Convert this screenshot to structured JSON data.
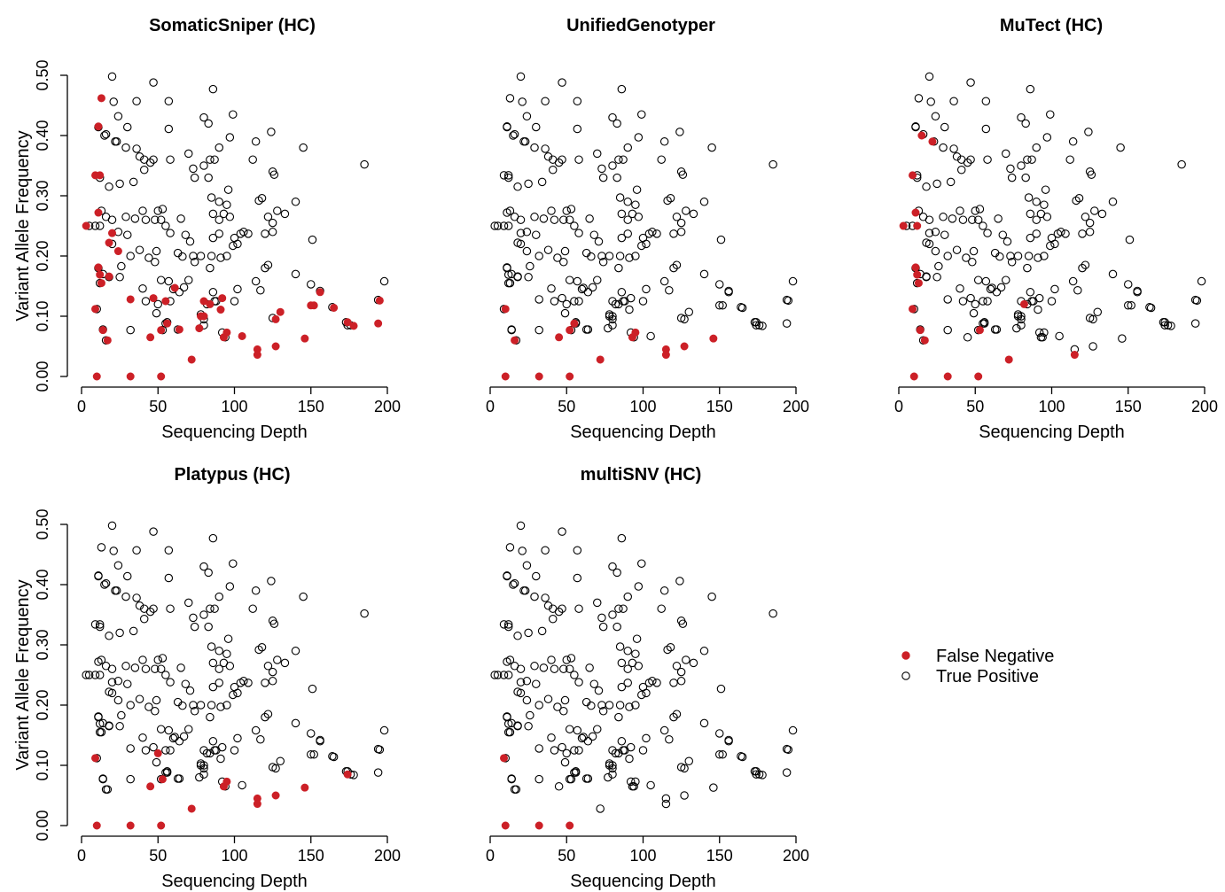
{
  "colors": {
    "false_negative": "#CC2027",
    "true_positive_stroke": "#000000",
    "axis": "#000000"
  },
  "legend": {
    "items": [
      {
        "label": "False Negative",
        "marker": "filled-circle",
        "color": "#CC2027"
      },
      {
        "label": "True Positive",
        "marker": "open-circle",
        "color": "#000000"
      }
    ]
  },
  "chart_data": [
    {
      "type": "scatter",
      "title": "SomaticSniper (HC)",
      "xlabel": "Sequencing Depth",
      "ylabel": "Variant Allele Frequency",
      "xlim": [
        0,
        200
      ],
      "ylim": [
        0,
        0.5
      ],
      "xticks": [
        "0",
        "50",
        "100",
        "150",
        "200"
      ],
      "yticks": [
        "0.00",
        "0.10",
        "0.20",
        "0.30",
        "0.40",
        "0.50"
      ],
      "grid": false,
      "false_negatives": [
        [
          3,
          0.25
        ],
        [
          9,
          0.112
        ],
        [
          9,
          0.334
        ],
        [
          10,
          0
        ],
        [
          11,
          0.272
        ],
        [
          11,
          0.181
        ],
        [
          12,
          0.169
        ],
        [
          12,
          0.334
        ],
        [
          13,
          0.462
        ],
        [
          13,
          0.155
        ],
        [
          14,
          0.077
        ],
        [
          17,
          0.06
        ],
        [
          18,
          0.222
        ],
        [
          18,
          0.166
        ],
        [
          20,
          0.238
        ],
        [
          24,
          0.208
        ],
        [
          32,
          0.128
        ],
        [
          32,
          0
        ],
        [
          45,
          0.065
        ],
        [
          47,
          0.13
        ],
        [
          52,
          0
        ],
        [
          52,
          0.077
        ],
        [
          55,
          0.125
        ],
        [
          56,
          0.088
        ],
        [
          64,
          0.078
        ],
        [
          72,
          0.028
        ],
        [
          77,
          0.08
        ],
        [
          78,
          0.1
        ],
        [
          80,
          0.1
        ],
        [
          80,
          0.125
        ],
        [
          84,
          0.12
        ],
        [
          91,
          0.111
        ],
        [
          92,
          0.13
        ],
        [
          93,
          0.065
        ],
        [
          95,
          0.073
        ],
        [
          105,
          0.067
        ],
        [
          115,
          0.045
        ],
        [
          115,
          0.036
        ],
        [
          127,
          0.05
        ],
        [
          127,
          0.095
        ],
        [
          130,
          0.107
        ],
        [
          146,
          0.063
        ],
        [
          150,
          0.118
        ],
        [
          152,
          0.118
        ],
        [
          156,
          0.14
        ],
        [
          165,
          0.114
        ],
        [
          174,
          0.09
        ],
        [
          178,
          0.084
        ],
        [
          194,
          0.088
        ],
        [
          195,
          0.126
        ],
        [
          11,
          0.415
        ],
        [
          61,
          0.147
        ]
      ]
    },
    {
      "type": "scatter",
      "title": "UnifiedGenotyper",
      "xlabel": "Sequencing Depth",
      "ylabel": "",
      "xlim": [
        0,
        200
      ],
      "ylim": [
        0,
        0.5
      ],
      "xticks": [
        "0",
        "50",
        "100",
        "150",
        "200"
      ],
      "yticks": [],
      "grid": false,
      "false_negatives": [
        [
          10,
          0
        ],
        [
          10,
          0.112
        ],
        [
          16,
          0.06
        ],
        [
          32,
          0
        ],
        [
          45,
          0.065
        ],
        [
          52,
          0
        ],
        [
          52,
          0.077
        ],
        [
          55,
          0.088
        ],
        [
          72,
          0.028
        ],
        [
          93,
          0.065
        ],
        [
          95,
          0.073
        ],
        [
          115,
          0.045
        ],
        [
          115,
          0.036
        ],
        [
          127,
          0.05
        ],
        [
          146,
          0.063
        ]
      ]
    },
    {
      "type": "scatter",
      "title": "MuTect (HC)",
      "xlabel": "Sequencing Depth",
      "ylabel": "",
      "xlim": [
        0,
        200
      ],
      "ylim": [
        0,
        0.5
      ],
      "xticks": [
        "0",
        "50",
        "100",
        "150",
        "200"
      ],
      "yticks": [],
      "grid": false,
      "false_negatives": [
        [
          3,
          0.25
        ],
        [
          9,
          0.112
        ],
        [
          9,
          0.334
        ],
        [
          10,
          0
        ],
        [
          11,
          0.272
        ],
        [
          11,
          0.181
        ],
        [
          12,
          0.25
        ],
        [
          12,
          0.169
        ],
        [
          13,
          0.155
        ],
        [
          14,
          0.077
        ],
        [
          15,
          0.4
        ],
        [
          17,
          0.06
        ],
        [
          22,
          0.39
        ],
        [
          32,
          0
        ],
        [
          52,
          0
        ],
        [
          53,
          0.077
        ],
        [
          72,
          0.028
        ],
        [
          82,
          0.12
        ],
        [
          115,
          0.036
        ]
      ]
    },
    {
      "type": "scatter",
      "title": "Platypus (HC)",
      "xlabel": "Sequencing Depth",
      "ylabel": "Variant Allele Frequency",
      "xlim": [
        0,
        200
      ],
      "ylim": [
        0,
        0.5
      ],
      "xticks": [
        "0",
        "50",
        "100",
        "150",
        "200"
      ],
      "yticks": [
        "0.00",
        "0.10",
        "0.20",
        "0.30",
        "0.40",
        "0.50"
      ],
      "grid": false,
      "false_negatives": [
        [
          9,
          0.112
        ],
        [
          10,
          0
        ],
        [
          32,
          0
        ],
        [
          45,
          0.065
        ],
        [
          50,
          0.12
        ],
        [
          52,
          0
        ],
        [
          53,
          0.077
        ],
        [
          72,
          0.028
        ],
        [
          93,
          0.065
        ],
        [
          95,
          0.073
        ],
        [
          115,
          0.045
        ],
        [
          115,
          0.036
        ],
        [
          127,
          0.05
        ],
        [
          146,
          0.063
        ],
        [
          174,
          0.085
        ]
      ]
    },
    {
      "type": "scatter",
      "title": "multiSNV (HC)",
      "xlabel": "Sequencing Depth",
      "ylabel": "",
      "xlim": [
        0,
        200
      ],
      "ylim": [
        0,
        0.5
      ],
      "xticks": [
        "0",
        "50",
        "100",
        "150",
        "200"
      ],
      "yticks": [],
      "grid": false,
      "false_negatives": [
        [
          9,
          0.112
        ],
        [
          10,
          0
        ],
        [
          32,
          0
        ],
        [
          52,
          0
        ]
      ]
    }
  ],
  "all_sites": [
    [
      3,
      0.25
    ],
    [
      9,
      0.112
    ],
    [
      9,
      0.334
    ],
    [
      10,
      0
    ],
    [
      11,
      0.272
    ],
    [
      11,
      0.181
    ],
    [
      12,
      0.169
    ],
    [
      12,
      0.334
    ],
    [
      13,
      0.462
    ],
    [
      13,
      0.155
    ],
    [
      14,
      0.077
    ],
    [
      17,
      0.06
    ],
    [
      18,
      0.222
    ],
    [
      18,
      0.166
    ],
    [
      20,
      0.238
    ],
    [
      24,
      0.208
    ],
    [
      32,
      0.128
    ],
    [
      32,
      0
    ],
    [
      45,
      0.065
    ],
    [
      47,
      0.13
    ],
    [
      52,
      0
    ],
    [
      52,
      0.077
    ],
    [
      55,
      0.125
    ],
    [
      56,
      0.088
    ],
    [
      64,
      0.078
    ],
    [
      72,
      0.028
    ],
    [
      77,
      0.08
    ],
    [
      78,
      0.1
    ],
    [
      80,
      0.1
    ],
    [
      80,
      0.125
    ],
    [
      84,
      0.12
    ],
    [
      91,
      0.111
    ],
    [
      92,
      0.13
    ],
    [
      93,
      0.065
    ],
    [
      95,
      0.073
    ],
    [
      105,
      0.067
    ],
    [
      115,
      0.045
    ],
    [
      115,
      0.036
    ],
    [
      127,
      0.05
    ],
    [
      127,
      0.095
    ],
    [
      130,
      0.107
    ],
    [
      146,
      0.063
    ],
    [
      150,
      0.118
    ],
    [
      152,
      0.118
    ],
    [
      156,
      0.14
    ],
    [
      165,
      0.114
    ],
    [
      174,
      0.09
    ],
    [
      178,
      0.084
    ],
    [
      194,
      0.088
    ],
    [
      195,
      0.126
    ],
    [
      11,
      0.415
    ],
    [
      61,
      0.147
    ],
    [
      12,
      0.25
    ],
    [
      15,
      0.4
    ],
    [
      22,
      0.39
    ],
    [
      53,
      0.077
    ],
    [
      82,
      0.12
    ],
    [
      50,
      0.12
    ],
    [
      174,
      0.085
    ],
    [
      10,
      0.112
    ],
    [
      16,
      0.06
    ],
    [
      55,
      0.088
    ],
    [
      20,
      0.498
    ],
    [
      47,
      0.488
    ],
    [
      13,
      0.462
    ],
    [
      36,
      0.457
    ],
    [
      57,
      0.457
    ],
    [
      21,
      0.456
    ],
    [
      86,
      0.477
    ],
    [
      24,
      0.432
    ],
    [
      80,
      0.43
    ],
    [
      99,
      0.435
    ],
    [
      30,
      0.414
    ],
    [
      57,
      0.411
    ],
    [
      83,
      0.42
    ],
    [
      11,
      0.414
    ],
    [
      16,
      0.402
    ],
    [
      29,
      0.38
    ],
    [
      36,
      0.378
    ],
    [
      41,
      0.36
    ],
    [
      47,
      0.36
    ],
    [
      114,
      0.39
    ],
    [
      124,
      0.406
    ],
    [
      90,
      0.38
    ],
    [
      97,
      0.397
    ],
    [
      145,
      0.38
    ],
    [
      23,
      0.39
    ],
    [
      70,
      0.37
    ],
    [
      87,
      0.36
    ],
    [
      84,
      0.36
    ],
    [
      80,
      0.35
    ],
    [
      112,
      0.36
    ],
    [
      185,
      0.352
    ],
    [
      38,
      0.365
    ],
    [
      45,
      0.355
    ],
    [
      58,
      0.36
    ],
    [
      73,
      0.345
    ],
    [
      74,
      0.33
    ],
    [
      83,
      0.33
    ],
    [
      125,
      0.34
    ],
    [
      126,
      0.335
    ],
    [
      41,
      0.343
    ],
    [
      34,
      0.323
    ],
    [
      18,
      0.315
    ],
    [
      25,
      0.32
    ],
    [
      12,
      0.33
    ],
    [
      85,
      0.297
    ],
    [
      96,
      0.31
    ],
    [
      116,
      0.292
    ],
    [
      118,
      0.296
    ],
    [
      140,
      0.29
    ],
    [
      50,
      0.275
    ],
    [
      40,
      0.275
    ],
    [
      53,
      0.278
    ],
    [
      29,
      0.265
    ],
    [
      16,
      0.265
    ],
    [
      35,
      0.262
    ],
    [
      42,
      0.26
    ],
    [
      48,
      0.26
    ],
    [
      52,
      0.26
    ],
    [
      65,
      0.262
    ],
    [
      86,
      0.27
    ],
    [
      90,
      0.26
    ],
    [
      93,
      0.27
    ],
    [
      95,
      0.285
    ],
    [
      90,
      0.29
    ],
    [
      97,
      0.265
    ],
    [
      106,
      0.24
    ],
    [
      100,
      0.23
    ],
    [
      102,
      0.22
    ],
    [
      99,
      0.217
    ],
    [
      122,
      0.265
    ],
    [
      128,
      0.275
    ],
    [
      133,
      0.27
    ],
    [
      125,
      0.255
    ],
    [
      120,
      0.237
    ],
    [
      125,
      0.24
    ],
    [
      151,
      0.227
    ],
    [
      9,
      0.25
    ],
    [
      5,
      0.25
    ],
    [
      11,
      0.272
    ],
    [
      13,
      0.275
    ],
    [
      20,
      0.26
    ],
    [
      24,
      0.24
    ],
    [
      30,
      0.235
    ],
    [
      20,
      0.22
    ],
    [
      38,
      0.21
    ],
    [
      49,
      0.208
    ],
    [
      55,
      0.25
    ],
    [
      58,
      0.238
    ],
    [
      68,
      0.235
    ],
    [
      71,
      0.224
    ],
    [
      86,
      0.23
    ],
    [
      90,
      0.237
    ],
    [
      85,
      0.2
    ],
    [
      91,
      0.197
    ],
    [
      95,
      0.2
    ],
    [
      109,
      0.237
    ],
    [
      104,
      0.237
    ],
    [
      26,
      0.183
    ],
    [
      32,
      0.2
    ],
    [
      44,
      0.197
    ],
    [
      48,
      0.19
    ],
    [
      63,
      0.205
    ],
    [
      66,
      0.199
    ],
    [
      73,
      0.2
    ],
    [
      74,
      0.19
    ],
    [
      78,
      0.2
    ],
    [
      84,
      0.18
    ],
    [
      120,
      0.18
    ],
    [
      122,
      0.185
    ],
    [
      14,
      0.17
    ],
    [
      11,
      0.18
    ],
    [
      18,
      0.165
    ],
    [
      40,
      0.146
    ],
    [
      52,
      0.16
    ],
    [
      57,
      0.158
    ],
    [
      60,
      0.145
    ],
    [
      64,
      0.14
    ],
    [
      67,
      0.148
    ],
    [
      70,
      0.16
    ],
    [
      86,
      0.14
    ],
    [
      88,
      0.125
    ],
    [
      102,
      0.145
    ],
    [
      114,
      0.158
    ],
    [
      117,
      0.143
    ],
    [
      140,
      0.17
    ],
    [
      150,
      0.153
    ],
    [
      156,
      0.142
    ],
    [
      198,
      0.158
    ],
    [
      194,
      0.127
    ],
    [
      152,
      0.118
    ],
    [
      50,
      0.12
    ],
    [
      42,
      0.125
    ],
    [
      49,
      0.105
    ],
    [
      58,
      0.125
    ],
    [
      78,
      0.103
    ],
    [
      80,
      0.095
    ],
    [
      87,
      0.125
    ],
    [
      100,
      0.125
    ],
    [
      130,
      0.107
    ],
    [
      10,
      0.112
    ],
    [
      25,
      0.165
    ],
    [
      12,
      0.155
    ],
    [
      14,
      0.078
    ],
    [
      17,
      0.06
    ],
    [
      32,
      0.077
    ],
    [
      52,
      0.077
    ],
    [
      56,
      0.09
    ],
    [
      63,
      0.078
    ],
    [
      77,
      0.08
    ],
    [
      80,
      0.085
    ],
    [
      78,
      0.1
    ],
    [
      125,
      0.097
    ],
    [
      164,
      0.115
    ],
    [
      173,
      0.09
    ],
    [
      176,
      0.085
    ],
    [
      194,
      0.088
    ],
    [
      92,
      0.073
    ],
    [
      94,
      0.065
    ]
  ]
}
